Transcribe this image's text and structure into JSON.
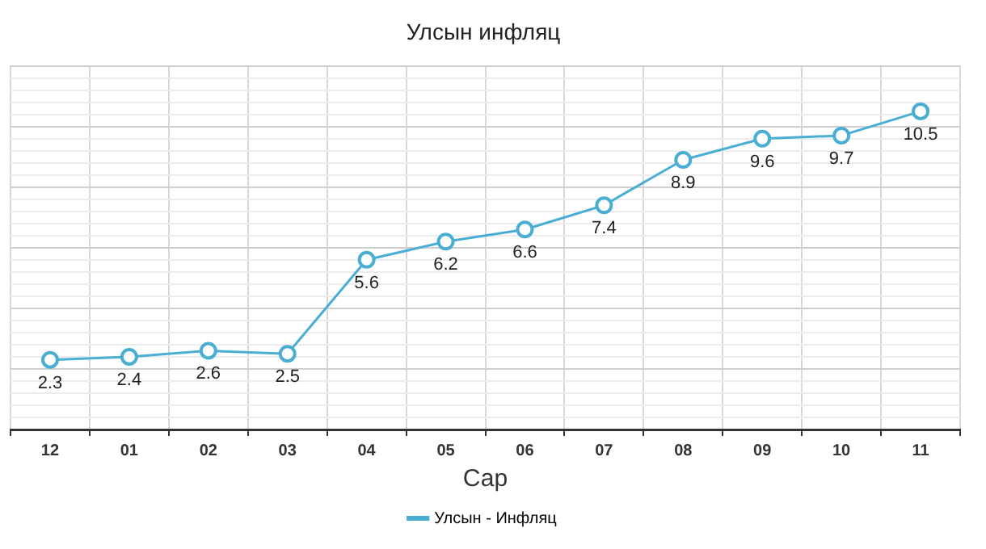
{
  "chart_data": {
    "type": "line",
    "title": "Улсын инфляц",
    "xlabel": "Сар",
    "categories": [
      "12",
      "01",
      "02",
      "03",
      "04",
      "05",
      "06",
      "07",
      "08",
      "09",
      "10",
      "11"
    ],
    "series": [
      {
        "name": "Улсын - Инфляц",
        "color": "#4aaed4",
        "values": [
          2.3,
          2.4,
          2.6,
          2.5,
          5.6,
          6.2,
          6.6,
          7.4,
          8.9,
          9.6,
          9.7,
          10.5
        ]
      }
    ],
    "ylim": [
      0,
      12
    ],
    "yticks": [
      {
        "value": 0,
        "label": null
      },
      {
        "value": 0.4,
        "label": null
      },
      {
        "value": 0.8,
        "label": null
      },
      {
        "value": 1.2,
        "label": null
      },
      {
        "value": 1.6,
        "label": null
      },
      {
        "value": 2,
        "label": null
      },
      {
        "value": 2.4,
        "label": null
      },
      {
        "value": 2.8,
        "label": null
      },
      {
        "value": 3.2,
        "label": null
      },
      {
        "value": 3.6,
        "label": null
      },
      {
        "value": 4,
        "label": null
      },
      {
        "value": 4.4,
        "label": null
      },
      {
        "value": 4.8,
        "label": null
      },
      {
        "value": 5.2,
        "label": null
      },
      {
        "value": 5.6,
        "label": null
      },
      {
        "value": 6,
        "label": null
      },
      {
        "value": 6.4,
        "label": null
      },
      {
        "value": 6.8,
        "label": null
      },
      {
        "value": 7.2,
        "label": null
      },
      {
        "value": 7.6,
        "label": null
      },
      {
        "value": 8,
        "label": null
      },
      {
        "value": 8.4,
        "label": null
      },
      {
        "value": 8.8,
        "label": null
      },
      {
        "value": 9.2,
        "label": null
      },
      {
        "value": 9.6,
        "label": null
      },
      {
        "value": 10,
        "label": null
      },
      {
        "value": 10.4,
        "label": null
      },
      {
        "value": 10.8,
        "label": null
      },
      {
        "value": 11.2,
        "label": null
      },
      {
        "value": 11.6,
        "label": null
      },
      {
        "value": 12,
        "label": null
      }
    ],
    "tick_labels": "x",
    "grid": true,
    "legend": "bottom",
    "marker": "circle",
    "line_style": "solid",
    "data_labels": true
  }
}
